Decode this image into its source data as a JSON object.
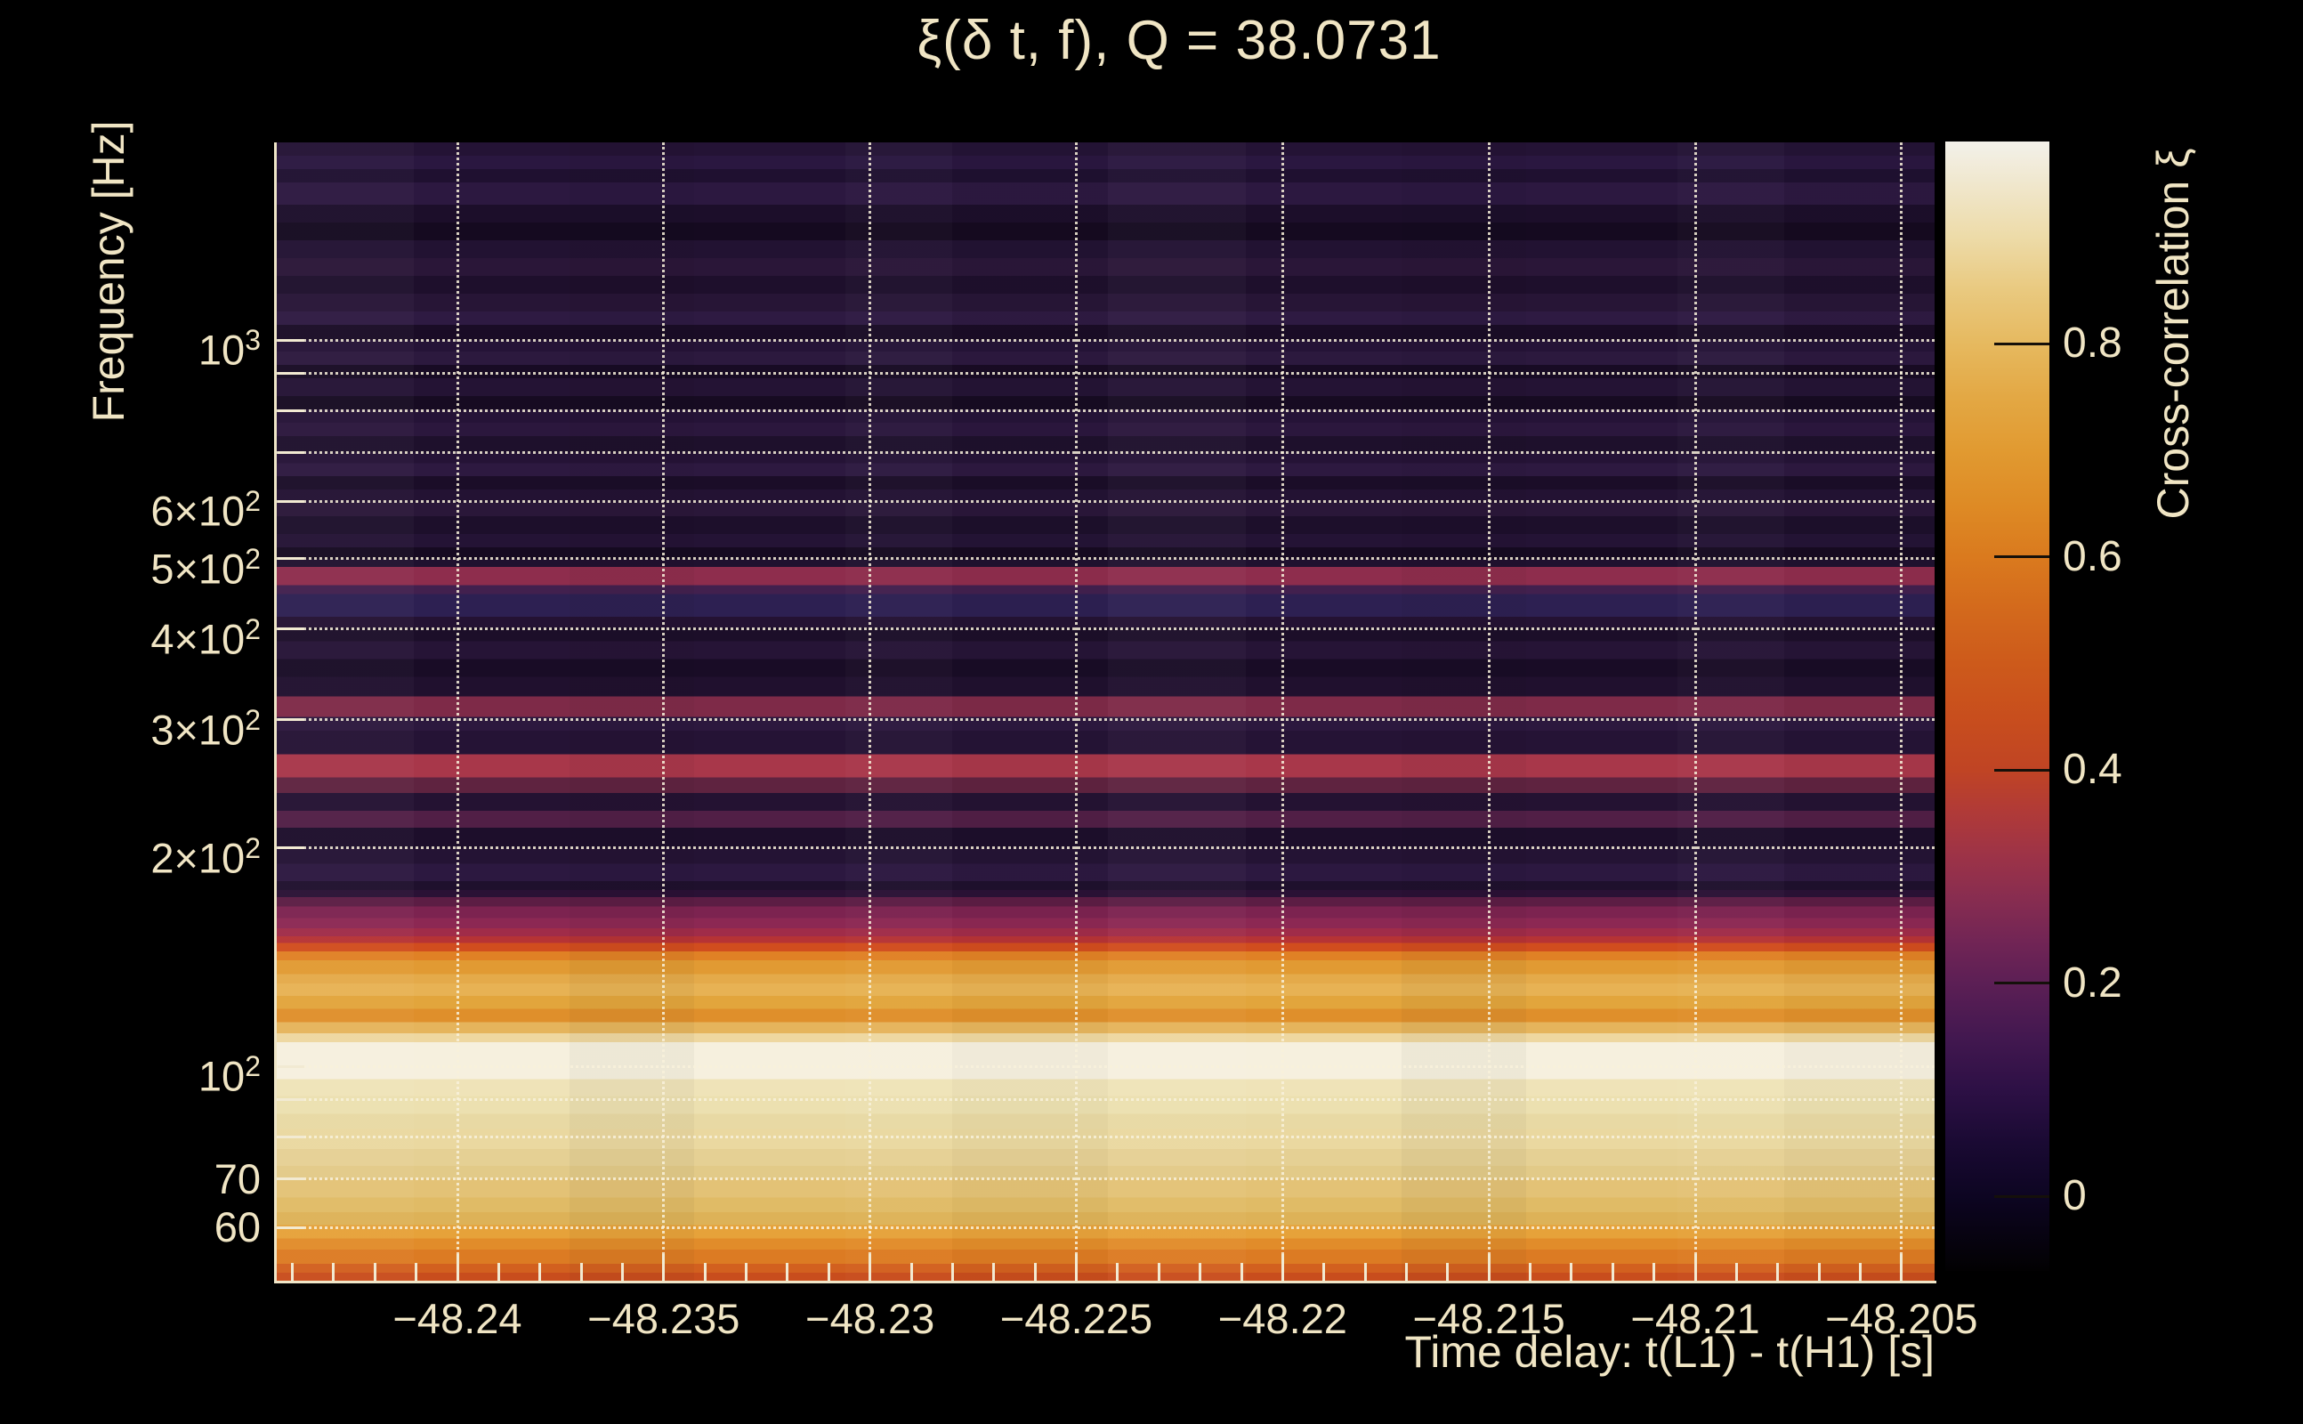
{
  "title": "ξ(δ t, f), Q = 38.0731",
  "x_axis": {
    "label": "Time delay: t(L1) - t(H1) [s]",
    "range": [
      -48.2444,
      -48.2042
    ],
    "major_ticks": [
      {
        "label": "−48.24",
        "value": -48.24
      },
      {
        "label": "−48.235",
        "value": -48.235
      },
      {
        "label": "−48.23",
        "value": -48.23
      },
      {
        "label": "−48.225",
        "value": -48.225
      },
      {
        "label": "−48.22",
        "value": -48.22
      },
      {
        "label": "−48.215",
        "value": -48.215
      },
      {
        "label": "−48.21",
        "value": -48.21
      },
      {
        "label": "−48.205",
        "value": -48.205
      }
    ],
    "minor_tick_step": 0.001
  },
  "y_axis": {
    "label": "Frequency [Hz]",
    "scale": "log",
    "range_hz": [
      50.7,
      1871
    ],
    "major_ticks": [
      {
        "label": "10^3",
        "value": 1000
      },
      {
        "label": "6×10^2",
        "value": 600
      },
      {
        "label": "5×10^2",
        "value": 500
      },
      {
        "label": "4×10^2",
        "value": 400
      },
      {
        "label": "3×10^2",
        "value": 300
      },
      {
        "label": "2×10^2",
        "value": 200
      },
      {
        "label": "10^2",
        "value": 100
      },
      {
        "label": "70",
        "value": 70
      },
      {
        "label": "60",
        "value": 60
      }
    ],
    "unlabeled_grid_hz": [
      900,
      800,
      700,
      90,
      80
    ]
  },
  "colorbar": {
    "label": "Cross-correlation ξ",
    "range": [
      -0.07,
      0.99
    ],
    "ticks": [
      {
        "label": "0.8",
        "value": 0.8
      },
      {
        "label": "0.6",
        "value": 0.6
      },
      {
        "label": "0.4",
        "value": 0.4
      },
      {
        "label": "0.2",
        "value": 0.2
      },
      {
        "label": "0",
        "value": 0
      }
    ],
    "stops": [
      {
        "v": 0.99,
        "c": "#f3f1ea"
      },
      {
        "v": 0.95,
        "c": "#f0e7cd"
      },
      {
        "v": 0.9,
        "c": "#eddba8"
      },
      {
        "v": 0.85,
        "c": "#e9c97f"
      },
      {
        "v": 0.8,
        "c": "#e6b95f"
      },
      {
        "v": 0.75,
        "c": "#e3a844"
      },
      {
        "v": 0.7,
        "c": "#e19a31"
      },
      {
        "v": 0.65,
        "c": "#de8b25"
      },
      {
        "v": 0.6,
        "c": "#da7a1e"
      },
      {
        "v": 0.55,
        "c": "#d3691c"
      },
      {
        "v": 0.5,
        "c": "#cd5a1b"
      },
      {
        "v": 0.45,
        "c": "#c84e1d"
      },
      {
        "v": 0.4,
        "c": "#c04424"
      },
      {
        "v": 0.36,
        "c": "#b03a38"
      },
      {
        "v": 0.32,
        "c": "#9d3347"
      },
      {
        "v": 0.28,
        "c": "#882d50"
      },
      {
        "v": 0.24,
        "c": "#722555"
      },
      {
        "v": 0.2,
        "c": "#5c1f55"
      },
      {
        "v": 0.15,
        "c": "#431850"
      },
      {
        "v": 0.1,
        "c": "#2d1045"
      },
      {
        "v": 0.05,
        "c": "#1a0a33"
      },
      {
        "v": 0.0,
        "c": "#0d0522"
      },
      {
        "v": -0.07,
        "c": "#020102"
      }
    ]
  },
  "chart_data": {
    "type": "heatmap",
    "title": "ξ(δ t, f), Q = 38.0731",
    "x": {
      "label": "Time delay: t(L1) - t(H1) [s]",
      "range": [
        -48.2444,
        -48.2042
      ],
      "major_tick_values": [
        -48.24,
        -48.235,
        -48.23,
        -48.225,
        -48.22,
        -48.215,
        -48.21,
        -48.205
      ]
    },
    "y": {
      "label": "Frequency [Hz]",
      "scale": "log",
      "range_hz": [
        50.7,
        1871
      ]
    },
    "value": {
      "label": "Cross-correlation ξ",
      "range": [
        -0.07,
        0.99
      ]
    },
    "note": "Cross-correlation is nearly constant along the time-delay axis; dominant high-ξ ridge between ~65–160 Hz peaking ξ≈0.96 near 80–110 Hz; secondary ridges near 265 Hz (ξ≈0.38), 300 Hz (ξ≈0.28), 480 Hz (ξ≈0.33); dark low-ξ background above ~170 Hz.",
    "bands_format": [
      "f_hi_hz",
      "f_lo_hz",
      "xi",
      "color"
    ],
    "bands": [
      [
        1866,
        1793,
        0.06,
        "#241335"
      ],
      [
        1793,
        1719,
        0.08,
        "#2a1740"
      ],
      [
        1719,
        1648,
        0.05,
        "#1f1030"
      ],
      [
        1648,
        1536,
        0.09,
        "#2c1840"
      ],
      [
        1536,
        1451,
        0.04,
        "#1c0e2a"
      ],
      [
        1451,
        1372,
        0.02,
        "#150a20"
      ],
      [
        1372,
        1297,
        0.06,
        "#221232"
      ],
      [
        1297,
        1225,
        0.08,
        "#2a1638"
      ],
      [
        1225,
        1158,
        0.05,
        "#1e0f2c"
      ],
      [
        1158,
        1094,
        0.07,
        "#271536"
      ],
      [
        1094,
        1049,
        0.09,
        "#2e1a42"
      ],
      [
        1049,
        1000,
        0.04,
        "#1a0c26"
      ],
      [
        1000,
        964,
        0.06,
        "#251337"
      ],
      [
        964,
        924,
        0.08,
        "#2c193e"
      ],
      [
        924,
        886,
        0.02,
        "#180b24"
      ],
      [
        886,
        837,
        0.06,
        "#241334"
      ],
      [
        837,
        803,
        0.02,
        "#170b22"
      ],
      [
        803,
        769,
        0.06,
        "#251337"
      ],
      [
        769,
        737,
        0.08,
        "#2b173d"
      ],
      [
        737,
        701,
        0.05,
        "#1e102c"
      ],
      [
        701,
        677,
        0.06,
        "#251336"
      ],
      [
        677,
        650,
        0.09,
        "#2d1940"
      ],
      [
        650,
        623,
        0.03,
        "#1b0d28"
      ],
      [
        623,
        597,
        0.06,
        "#231233"
      ],
      [
        597,
        572,
        0.08,
        "#2a1739"
      ],
      [
        572,
        541,
        0.04,
        "#1d0f2b"
      ],
      [
        541,
        518,
        0.06,
        "#241335"
      ],
      [
        518,
        500,
        0.02,
        "#160a21"
      ],
      [
        500,
        487,
        0.05,
        "#20112f"
      ],
      [
        487,
        460,
        0.33,
        "#8e2d4d"
      ],
      [
        460,
        447,
        0.12,
        "#42204e"
      ],
      [
        447,
        416,
        0.1,
        "#2d2052"
      ],
      [
        416,
        402,
        0.06,
        "#241233"
      ],
      [
        402,
        385,
        0.04,
        "#1c0e29"
      ],
      [
        385,
        364,
        0.07,
        "#261436"
      ],
      [
        364,
        344,
        0.03,
        "#190c26"
      ],
      [
        344,
        323,
        0.05,
        "#20102e"
      ],
      [
        323,
        303,
        0.28,
        "#7e2a48"
      ],
      [
        303,
        290,
        0.09,
        "#2c183e"
      ],
      [
        290,
        269,
        0.06,
        "#251335"
      ],
      [
        269,
        250,
        0.38,
        "#a8374a"
      ],
      [
        250,
        238,
        0.2,
        "#5f2340"
      ],
      [
        238,
        225,
        0.06,
        "#241232"
      ],
      [
        225,
        213,
        0.18,
        "#511f46"
      ],
      [
        213,
        200,
        0.04,
        "#1d0e2b"
      ],
      [
        200,
        190,
        0.06,
        "#241334"
      ],
      [
        190,
        180,
        0.08,
        "#2c1840"
      ],
      [
        180,
        175,
        0.05,
        "#1f102d"
      ],
      [
        175,
        171,
        0.08,
        "#2a1135"
      ],
      [
        171,
        166,
        0.17,
        "#5c1d44"
      ],
      [
        166,
        160,
        0.24,
        "#7c2350"
      ],
      [
        160,
        155,
        0.28,
        "#8c2853"
      ],
      [
        155,
        151,
        0.33,
        "#a02c49"
      ],
      [
        151,
        148,
        0.4,
        "#b63335"
      ],
      [
        148,
        144,
        0.5,
        "#d14d1e"
      ],
      [
        144,
        140,
        0.6,
        "#e08125"
      ],
      [
        140,
        134,
        0.68,
        "#e19a33"
      ],
      [
        134,
        130,
        0.73,
        "#e4aa4a"
      ],
      [
        130,
        125,
        0.77,
        "#e7b254"
      ],
      [
        125,
        120,
        0.7,
        "#e2a53c"
      ],
      [
        120,
        115,
        0.65,
        "#df8f2b"
      ],
      [
        115,
        111,
        0.76,
        "#e5b45c"
      ],
      [
        111,
        108,
        0.86,
        "#eed7a0"
      ],
      [
        108,
        96,
        0.96,
        "#f6f0de"
      ],
      [
        96,
        91,
        0.91,
        "#efe3b8"
      ],
      [
        91,
        86,
        0.89,
        "#ece0b0"
      ],
      [
        86,
        82,
        0.87,
        "#e8d9a4"
      ],
      [
        82,
        77,
        0.87,
        "#ead8a0"
      ],
      [
        77,
        73,
        0.85,
        "#e5d094"
      ],
      [
        73,
        70,
        0.83,
        "#e2ca88"
      ],
      [
        70,
        66,
        0.81,
        "#e3c276"
      ],
      [
        66,
        63,
        0.79,
        "#e0bb66"
      ],
      [
        63,
        60.5,
        0.77,
        "#ddb258"
      ],
      [
        60.5,
        58,
        0.7,
        "#e6a23a"
      ],
      [
        58,
        56,
        0.66,
        "#e18c2a"
      ],
      [
        56,
        53.5,
        0.61,
        "#dc7b23"
      ],
      [
        53.5,
        52,
        0.52,
        "#d2601f"
      ],
      [
        52,
        50.7,
        0.47,
        "#c84d1d"
      ]
    ]
  }
}
